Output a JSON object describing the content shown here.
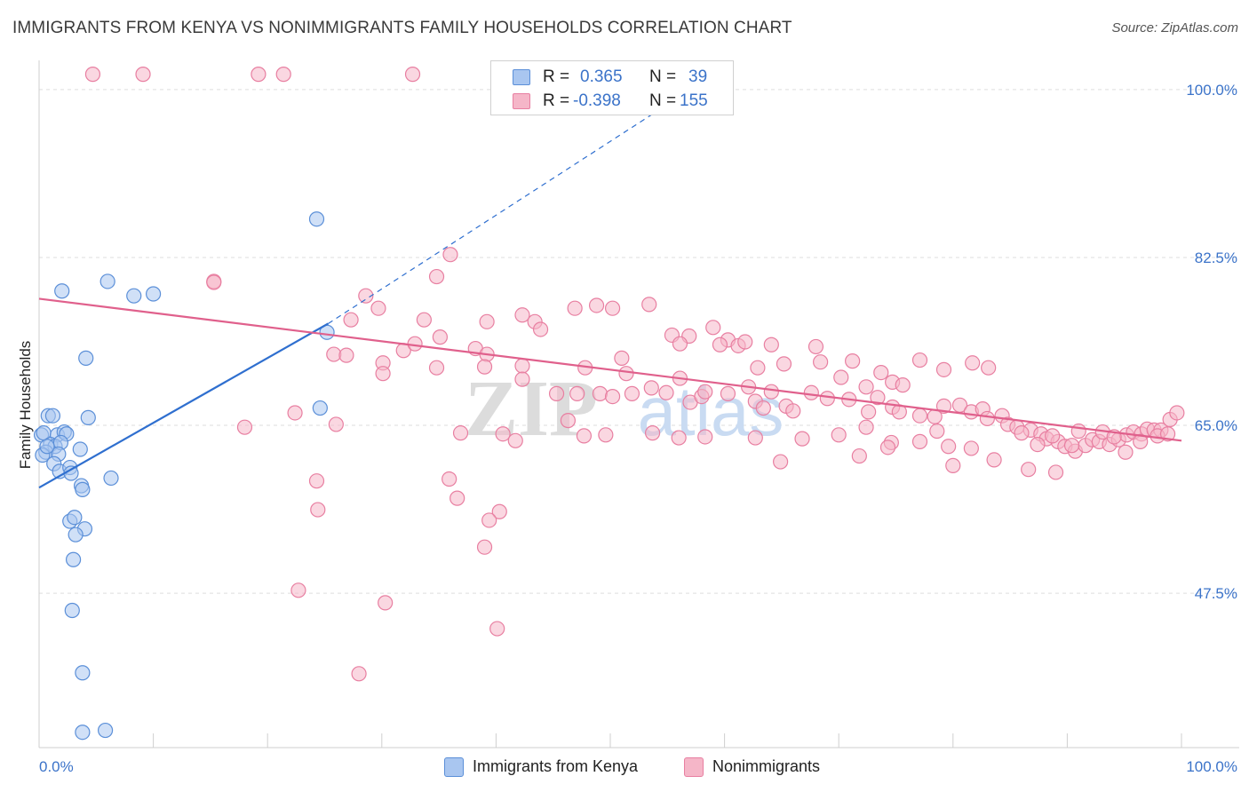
{
  "title": "IMMIGRANTS FROM KENYA VS NONIMMIGRANTS FAMILY HOUSEHOLDS CORRELATION CHART",
  "source": "Source: ZipAtlas.com",
  "watermark": {
    "zip": "ZIP",
    "atlas": "atlas"
  },
  "colors": {
    "blue_fill": "#a9c6f0",
    "blue_stroke": "#5b8fd8",
    "blue_line": "#2f6fcf",
    "pink_fill": "#f5b6c8",
    "pink_stroke": "#e87fa1",
    "pink_line": "#e0608c",
    "tick_text": "#3b73c9",
    "grid": "#dddddd"
  },
  "legend": {
    "rows": [
      {
        "r_label": "R =",
        "r_value": "0.365",
        "n_label": "N =",
        "n_value": "39"
      },
      {
        "r_label": "R =",
        "r_value": "-0.398",
        "n_label": "N =",
        "n_value": "155"
      }
    ]
  },
  "bottom_legend": {
    "series1": "Immigrants from Kenya",
    "series2": "Nonimmigrants"
  },
  "chart_data": {
    "type": "scatter",
    "xlabel": "",
    "ylabel": "Family Households",
    "xlim": [
      0,
      100
    ],
    "ylim": [
      31.4,
      103.6
    ],
    "x_tick_labels": [
      "0.0%",
      "100.0%"
    ],
    "y_ticks": [
      47.5,
      65.0,
      82.5,
      100.0
    ],
    "y_tick_labels": [
      "47.5%",
      "65.0%",
      "82.5%",
      "100.0%"
    ],
    "grid": true,
    "series": [
      {
        "name": "Immigrants from Kenya",
        "color": "blue",
        "trend": {
          "x": [
            0,
            25.3
          ],
          "y": [
            58.5,
            75.6
          ],
          "dashed_to": [
            57.8,
            100.6
          ]
        },
        "points": [
          [
            2.0,
            79.0
          ],
          [
            6.0,
            80.0
          ],
          [
            8.3,
            78.5
          ],
          [
            10.0,
            78.7
          ],
          [
            4.1,
            72.0
          ],
          [
            4.3,
            65.8
          ],
          [
            0.8,
            66.0
          ],
          [
            1.2,
            66.0
          ],
          [
            0.2,
            64.0
          ],
          [
            0.4,
            64.2
          ],
          [
            1.6,
            64.0
          ],
          [
            2.2,
            64.3
          ],
          [
            2.4,
            64.1
          ],
          [
            1.0,
            63.0
          ],
          [
            1.4,
            62.8
          ],
          [
            1.9,
            63.2
          ],
          [
            0.6,
            62.2
          ],
          [
            0.3,
            61.9
          ],
          [
            1.7,
            62.0
          ],
          [
            3.6,
            62.5
          ],
          [
            1.3,
            61.0
          ],
          [
            1.8,
            60.2
          ],
          [
            2.7,
            60.6
          ],
          [
            2.8,
            60.0
          ],
          [
            0.7,
            62.8
          ],
          [
            6.3,
            59.5
          ],
          [
            3.7,
            58.7
          ],
          [
            3.8,
            58.3
          ],
          [
            2.7,
            55.0
          ],
          [
            3.1,
            55.4
          ],
          [
            4.0,
            54.2
          ],
          [
            3.2,
            53.6
          ],
          [
            3.0,
            51.0
          ],
          [
            2.9,
            45.7
          ],
          [
            3.8,
            39.2
          ],
          [
            3.8,
            33.0
          ],
          [
            5.8,
            33.2
          ],
          [
            24.3,
            86.5
          ],
          [
            24.6,
            66.8
          ],
          [
            25.2,
            74.7
          ]
        ]
      },
      {
        "name": "Nonimmigrants",
        "color": "pink",
        "trend": {
          "x": [
            0,
            100
          ],
          "y": [
            78.2,
            63.4
          ]
        },
        "points": [
          [
            4.7,
            101.6
          ],
          [
            9.1,
            101.6
          ],
          [
            19.2,
            101.6
          ],
          [
            21.4,
            101.6
          ],
          [
            32.7,
            101.6
          ],
          [
            15.3,
            80.0
          ],
          [
            36.0,
            82.8
          ],
          [
            34.8,
            80.5
          ],
          [
            28.6,
            78.5
          ],
          [
            29.7,
            77.2
          ],
          [
            27.3,
            76.0
          ],
          [
            31.9,
            72.8
          ],
          [
            35.1,
            74.2
          ],
          [
            34.8,
            71.0
          ],
          [
            33.7,
            76.0
          ],
          [
            39.2,
            75.8
          ],
          [
            42.3,
            76.5
          ],
          [
            43.4,
            75.8
          ],
          [
            48.8,
            77.5
          ],
          [
            50.2,
            77.2
          ],
          [
            43.9,
            75.0
          ],
          [
            46.9,
            77.2
          ],
          [
            47.8,
            71.0
          ],
          [
            51.0,
            72.0
          ],
          [
            53.4,
            77.6
          ],
          [
            55.4,
            74.4
          ],
          [
            56.9,
            74.3
          ],
          [
            59.0,
            75.2
          ],
          [
            56.1,
            73.5
          ],
          [
            60.3,
            73.9
          ],
          [
            59.6,
            73.4
          ],
          [
            61.2,
            73.3
          ],
          [
            61.8,
            73.7
          ],
          [
            64.1,
            73.4
          ],
          [
            62.9,
            71.0
          ],
          [
            65.2,
            71.4
          ],
          [
            68.0,
            73.2
          ],
          [
            68.4,
            71.6
          ],
          [
            71.2,
            71.7
          ],
          [
            72.4,
            69.0
          ],
          [
            70.2,
            70.0
          ],
          [
            73.7,
            70.5
          ],
          [
            74.7,
            69.5
          ],
          [
            75.6,
            69.2
          ],
          [
            77.1,
            71.8
          ],
          [
            79.2,
            70.8
          ],
          [
            81.7,
            71.5
          ],
          [
            83.1,
            71.0
          ],
          [
            25.8,
            72.4
          ],
          [
            26.9,
            72.3
          ],
          [
            30.1,
            71.5
          ],
          [
            30.1,
            70.4
          ],
          [
            32.9,
            73.5
          ],
          [
            38.2,
            73.0
          ],
          [
            39.2,
            72.4
          ],
          [
            39.0,
            71.1
          ],
          [
            42.3,
            71.2
          ],
          [
            42.3,
            69.8
          ],
          [
            47.1,
            68.3
          ],
          [
            49.1,
            68.3
          ],
          [
            50.2,
            68.0
          ],
          [
            45.3,
            68.3
          ],
          [
            51.4,
            70.4
          ],
          [
            51.9,
            68.3
          ],
          [
            53.6,
            68.9
          ],
          [
            54.9,
            68.4
          ],
          [
            56.1,
            69.9
          ],
          [
            57.0,
            67.4
          ],
          [
            58.0,
            68.0
          ],
          [
            58.3,
            68.5
          ],
          [
            60.3,
            68.3
          ],
          [
            62.1,
            69.0
          ],
          [
            62.7,
            67.5
          ],
          [
            63.4,
            66.8
          ],
          [
            64.1,
            68.5
          ],
          [
            65.4,
            67.0
          ],
          [
            66.0,
            66.5
          ],
          [
            67.6,
            68.4
          ],
          [
            69.0,
            67.8
          ],
          [
            70.9,
            67.7
          ],
          [
            72.6,
            66.4
          ],
          [
            73.4,
            67.9
          ],
          [
            74.7,
            66.9
          ],
          [
            75.3,
            66.4
          ],
          [
            77.1,
            66.0
          ],
          [
            78.4,
            65.9
          ],
          [
            78.6,
            64.4
          ],
          [
            79.2,
            67.0
          ],
          [
            80.6,
            67.1
          ],
          [
            81.6,
            66.4
          ],
          [
            82.6,
            66.7
          ],
          [
            83.0,
            65.7
          ],
          [
            84.3,
            66.0
          ],
          [
            84.8,
            65.1
          ],
          [
            85.6,
            64.8
          ],
          [
            86.8,
            64.5
          ],
          [
            87.7,
            64.1
          ],
          [
            88.2,
            63.6
          ],
          [
            89.2,
            63.3
          ],
          [
            89.8,
            62.8
          ],
          [
            90.7,
            62.3
          ],
          [
            91.6,
            62.9
          ],
          [
            92.2,
            63.5
          ],
          [
            92.8,
            63.3
          ],
          [
            93.7,
            63.0
          ],
          [
            94.5,
            63.5
          ],
          [
            95.2,
            64.0
          ],
          [
            95.8,
            64.3
          ],
          [
            96.5,
            64.1
          ],
          [
            97.0,
            64.6
          ],
          [
            97.6,
            64.5
          ],
          [
            98.2,
            64.5
          ],
          [
            99.0,
            65.6
          ],
          [
            99.6,
            66.3
          ],
          [
            86.0,
            64.2
          ],
          [
            87.4,
            63.0
          ],
          [
            88.7,
            63.9
          ],
          [
            90.4,
            62.9
          ],
          [
            91.0,
            64.4
          ],
          [
            93.1,
            64.3
          ],
          [
            94.1,
            63.8
          ],
          [
            95.1,
            62.2
          ],
          [
            96.4,
            63.3
          ],
          [
            97.9,
            63.9
          ],
          [
            98.8,
            64.1
          ],
          [
            18.0,
            64.8
          ],
          [
            22.4,
            66.3
          ],
          [
            26.0,
            65.1
          ],
          [
            36.9,
            64.2
          ],
          [
            40.6,
            64.1
          ],
          [
            41.7,
            63.4
          ],
          [
            46.3,
            65.5
          ],
          [
            47.7,
            63.9
          ],
          [
            49.6,
            64.0
          ],
          [
            53.7,
            64.2
          ],
          [
            56.0,
            63.7
          ],
          [
            58.3,
            63.8
          ],
          [
            62.7,
            63.7
          ],
          [
            66.8,
            63.6
          ],
          [
            70.0,
            64.0
          ],
          [
            72.4,
            64.8
          ],
          [
            74.6,
            63.2
          ],
          [
            77.1,
            63.3
          ],
          [
            79.6,
            62.8
          ],
          [
            81.6,
            62.6
          ],
          [
            64.9,
            61.2
          ],
          [
            71.8,
            61.8
          ],
          [
            74.3,
            62.7
          ],
          [
            80.0,
            60.8
          ],
          [
            83.6,
            61.4
          ],
          [
            86.6,
            60.4
          ],
          [
            89.0,
            60.1
          ],
          [
            15.3,
            79.9
          ],
          [
            24.3,
            59.2
          ],
          [
            35.9,
            59.4
          ],
          [
            24.4,
            56.2
          ],
          [
            40.3,
            56.0
          ],
          [
            39.4,
            55.1
          ],
          [
            39.0,
            52.3
          ],
          [
            22.7,
            47.8
          ],
          [
            30.3,
            46.5
          ],
          [
            40.1,
            43.8
          ],
          [
            28.0,
            39.1
          ],
          [
            36.6,
            57.4
          ]
        ]
      }
    ]
  }
}
